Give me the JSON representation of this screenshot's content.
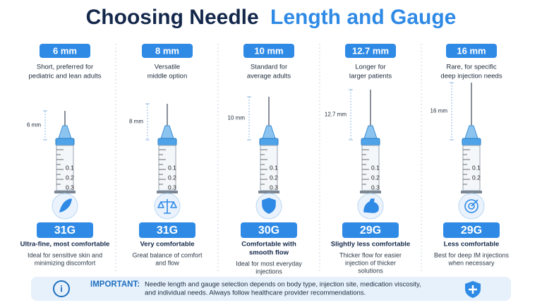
{
  "header": {
    "title_part1": "Choosing Needle",
    "title_part2": "Length and Gauge"
  },
  "columns": [
    {
      "length": "6 mm",
      "description": [
        "Short, preferred for",
        "pediatric and lean adults"
      ],
      "side_label": "6 mm",
      "syringe_ticks": [
        "0.1",
        "0.2",
        "0.3"
      ],
      "gauge": "31G",
      "comfort": [
        "Ultra-fine, most comfortable"
      ],
      "detail": [
        "Ideal for sensitive skin and",
        "minimizing discomfort"
      ]
    },
    {
      "length": "8 mm",
      "description": [
        "Versatile",
        "middle option"
      ],
      "side_label": "8 mm",
      "syringe_ticks": [
        "0.1",
        "0.2",
        "0.3"
      ],
      "gauge": "31G",
      "comfort": [
        "Very comfortable"
      ],
      "detail": [
        "Great balance of comfort",
        "and flow"
      ]
    },
    {
      "length": "10 mm",
      "description": [
        "Standard for",
        "average adults"
      ],
      "side_label": "10 mm",
      "syringe_ticks": [
        "0.1",
        "0.2",
        "0.3"
      ],
      "gauge": "30G",
      "comfort": [
        "Comfortable with",
        "smooth flow"
      ],
      "detail": [
        "Ideal for most everyday",
        "injections"
      ]
    },
    {
      "length": "12.7 mm",
      "description": [
        "Longer for",
        "larger patients"
      ],
      "side_label": "12.7 mm",
      "syringe_ticks": [
        "0.1",
        "0.2",
        "0.3"
      ],
      "gauge": "29G",
      "comfort": [
        "Slightly less comfortable"
      ],
      "detail": [
        "Thicker flow for easier",
        "injection of thicker",
        "solutions"
      ]
    },
    {
      "length": "16 mm",
      "description": [
        "Rare, for specific",
        "deep injection needs"
      ],
      "side_label": "16 mm",
      "syringe_ticks": [
        "0.1",
        "0.2"
      ],
      "gauge": "29G",
      "comfort": [
        "Less comfortable"
      ],
      "detail": [
        "Best for deep IM injections",
        "when necessary"
      ]
    }
  ],
  "footer": {
    "label": "IMPORTANT:",
    "text": [
      "Needle length and gauge selection depends on body type, injection site, medication viscosity,",
      "and individual needs. Always follow healthcare provider recommendations."
    ]
  }
}
